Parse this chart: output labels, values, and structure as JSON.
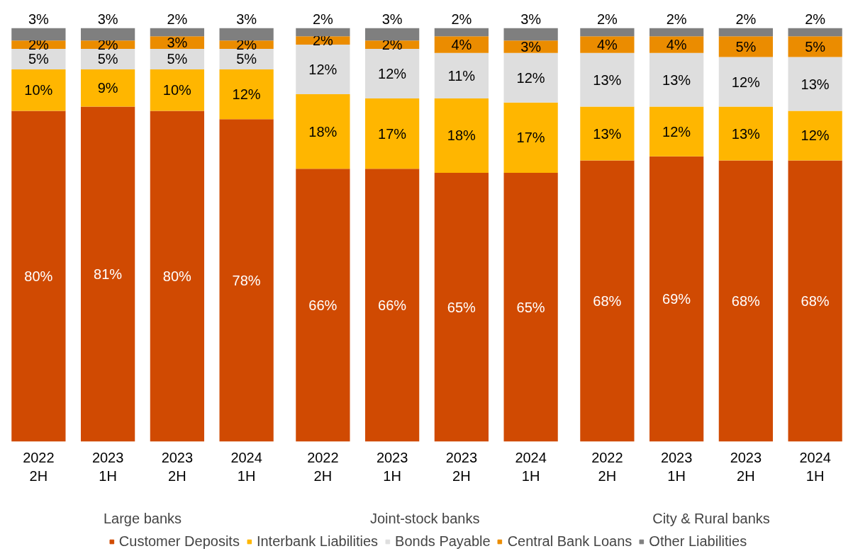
{
  "chart_data": [
    {
      "type": "bar",
      "stacked": true,
      "xlabel": "Large banks",
      "categories": [
        "2022\n2H",
        "2023\n1H",
        "2023\n2H",
        "2024\n1H"
      ],
      "tick_labels": "x",
      "legend": "bottom",
      "series": [
        {
          "name": "Customer Deposits",
          "color": "#d04a02",
          "values": [
            80,
            81,
            80,
            78
          ],
          "value_labels": [
            "80%",
            "81%",
            "80%",
            "78%"
          ]
        },
        {
          "name": "Interbank Liabilities",
          "color": "#ffb600",
          "values": [
            10,
            9,
            10,
            12
          ],
          "value_labels": [
            "10%",
            "9%",
            "10%",
            "12%"
          ]
        },
        {
          "name": "Bonds Payable",
          "color": "#dedede",
          "values": [
            5,
            5,
            5,
            5
          ],
          "value_labels": [
            "5%",
            "5%",
            "5%",
            "5%"
          ]
        },
        {
          "name": "Central Bank Loans",
          "color": "#eb8c00",
          "values": [
            2,
            2,
            3,
            2
          ],
          "value_labels": [
            "2%",
            "2%",
            "3%",
            "2%"
          ]
        },
        {
          "name": "Other Liabilities",
          "color": "#7f7f7f",
          "values": [
            3,
            3,
            2,
            3
          ],
          "value_labels": [
            "3%",
            "3%",
            "2%",
            "3%"
          ]
        }
      ]
    },
    {
      "type": "bar",
      "stacked": true,
      "xlabel": "Joint-stock  banks",
      "categories": [
        "2022\n2H",
        "2023\n1H",
        "2023\n2H",
        "2024\n1H"
      ],
      "tick_labels": "x",
      "series": [
        {
          "color": "#d04a02",
          "values": [
            66,
            66,
            65,
            65
          ],
          "value_labels": [
            "66%",
            "66%",
            "65%",
            "65%"
          ]
        },
        {
          "color": "#ffb600",
          "values": [
            18,
            17,
            18,
            17
          ],
          "value_labels": [
            "18%",
            "17%",
            "18%",
            "17%"
          ]
        },
        {
          "color": "#dedede",
          "values": [
            12,
            12,
            11,
            12
          ],
          "value_labels": [
            "12%",
            "12%",
            "11%",
            "12%"
          ]
        },
        {
          "color": "#eb8c00",
          "values": [
            2,
            2,
            4,
            3
          ],
          "value_labels": [
            "2%",
            "2%",
            "4%",
            "3%"
          ]
        },
        {
          "color": "#7f7f7f",
          "values": [
            2,
            3,
            2,
            3
          ],
          "value_labels": [
            "2%",
            "3%",
            "2%",
            "3%"
          ]
        }
      ]
    },
    {
      "type": "bar",
      "stacked": true,
      "xlabel": "City & Rural banks",
      "categories": [
        "2022\n2H",
        "2023\n1H",
        "2023\n2H",
        "2024\n1H"
      ],
      "tick_labels": "x",
      "series": [
        {
          "color": "#d04a02",
          "values": [
            68,
            69,
            68,
            68
          ],
          "value_labels": [
            "68%",
            "69%",
            "68%",
            "68%"
          ]
        },
        {
          "color": "#ffb600",
          "values": [
            13,
            12,
            13,
            12
          ],
          "value_labels": [
            "13%",
            "12%",
            "13%",
            "12%"
          ]
        },
        {
          "color": "#dedede",
          "values": [
            13,
            13,
            12,
            13
          ],
          "value_labels": [
            "13%",
            "13%",
            "12%",
            "13%"
          ]
        },
        {
          "color": "#eb8c00",
          "values": [
            4,
            4,
            5,
            5
          ],
          "value_labels": [
            "4%",
            "4%",
            "5%",
            "5%"
          ]
        },
        {
          "color": "#7f7f7f",
          "values": [
            2,
            2,
            2,
            2
          ],
          "value_labels": [
            "2%",
            "2%",
            "2%",
            "2%"
          ]
        }
      ]
    }
  ]
}
